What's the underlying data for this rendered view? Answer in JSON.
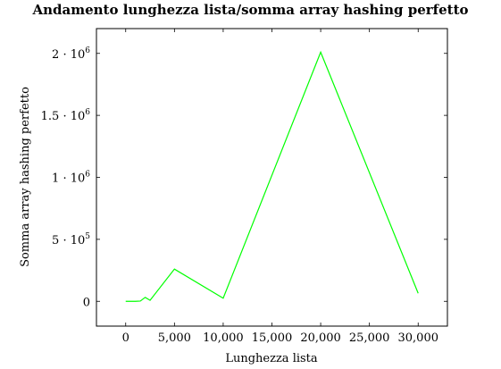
{
  "chart_data": {
    "type": "line",
    "title": "Andamento lunghezza lista/somma array hashing perfetto",
    "xlabel": "Lunghezza lista",
    "ylabel": "Somma array hashing perfetto",
    "xlim": [
      -3000,
      33000
    ],
    "ylim": [
      -200000,
      2200000
    ],
    "xticks": [
      0,
      5000,
      10000,
      15000,
      20000,
      25000,
      30000
    ],
    "xtick_labels": [
      "0",
      "5,000",
      "10,000",
      "15,000",
      "20,000",
      "25,000",
      "30,000"
    ],
    "yticks": [
      0,
      500000,
      1000000,
      1500000,
      2000000
    ],
    "ytick_labels": [
      {
        "base": "0",
        "exp": ""
      },
      {
        "base": "5 · 10",
        "exp": "5"
      },
      {
        "base": "1 · 10",
        "exp": "6"
      },
      {
        "base": "1.5 · 10",
        "exp": "6"
      },
      {
        "base": "2 · 10",
        "exp": "6"
      }
    ],
    "grid": false,
    "series": [
      {
        "color": "#00ff00",
        "x": [
          0,
          1000,
          1500,
          2000,
          2500,
          5000,
          10000,
          20000,
          30000
        ],
        "y": [
          0,
          0,
          2000,
          32000,
          8000,
          260000,
          25000,
          2010000,
          65000
        ]
      }
    ]
  }
}
